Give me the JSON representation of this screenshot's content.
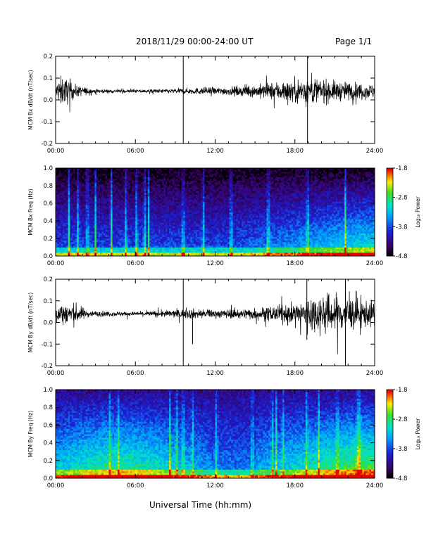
{
  "header": {
    "date_range": "2018/11/29  00:00-24:00 UT",
    "page": "Page 1/1"
  },
  "xlabel": "Universal Time (hh:mm)",
  "chart_data": [
    {
      "type": "line",
      "ylabel": "MCM Bx dB/dt (nT/sec)",
      "xlim": [
        0,
        24
      ],
      "ylim": [
        -0.2,
        0.2
      ],
      "x_ticks": [
        "00:00",
        "06:00",
        "12:00",
        "18:00",
        "24:00"
      ],
      "y_ticks": [
        "-0.2",
        "-0.1",
        "0.0",
        "0.1",
        "0.2"
      ],
      "baseline": 0.04,
      "amplitude_profile": [
        [
          0,
          0.03
        ],
        [
          0.3,
          0.07
        ],
        [
          1,
          0.06
        ],
        [
          1.5,
          0.03
        ],
        [
          3,
          0.01
        ],
        [
          6,
          0.008
        ],
        [
          9,
          0.012
        ],
        [
          10,
          0.015
        ],
        [
          13,
          0.02
        ],
        [
          15,
          0.03
        ],
        [
          17,
          0.05
        ],
        [
          19,
          0.07
        ],
        [
          21,
          0.05
        ],
        [
          23,
          0.04
        ],
        [
          24,
          0.035
        ]
      ],
      "spikes": [
        {
          "x": 9.6,
          "y": [
            -0.2,
            0.2
          ]
        },
        {
          "x": 18.95,
          "y": [
            -0.2,
            0.2
          ]
        }
      ]
    },
    {
      "type": "heatmap",
      "ylabel": "MCM Bx Freq (Hz)",
      "xlim": [
        0,
        24
      ],
      "ylim": [
        0,
        1.0
      ],
      "x_ticks": [
        "00:00",
        "06:00",
        "12:00",
        "18:00",
        "24:00"
      ],
      "y_ticks": [
        "0.0",
        "0.2",
        "0.4",
        "0.6",
        "0.8",
        "1.0"
      ],
      "colorbar": {
        "label": "Log₁₀ Power",
        "ticks": [
          "-1.8",
          "-2.8",
          "-3.8",
          "-4.8"
        ],
        "range": [
          -4.8,
          -1.8
        ]
      },
      "stripes": [
        1.0,
        1.7,
        2.4,
        3.0,
        4.2,
        5.3,
        6.1,
        6.7,
        7.0,
        9.6,
        11.1,
        13.2,
        16.0,
        18.95,
        21.8
      ]
    },
    {
      "type": "line",
      "ylabel": "MCM By dB/dt (nT/sec)",
      "xlim": [
        0,
        24
      ],
      "ylim": [
        -0.2,
        0.2
      ],
      "x_ticks": [
        "00:00",
        "06:00",
        "12:00",
        "18:00",
        "24:00"
      ],
      "y_ticks": [
        "-0.2",
        "-0.1",
        "0.0",
        "0.1",
        "0.2"
      ],
      "baseline": 0.04,
      "amplitude_profile": [
        [
          0,
          0.04
        ],
        [
          0.5,
          0.06
        ],
        [
          1.5,
          0.05
        ],
        [
          2.5,
          0.015
        ],
        [
          6,
          0.01
        ],
        [
          9,
          0.02
        ],
        [
          10,
          0.025
        ],
        [
          12,
          0.02
        ],
        [
          14,
          0.025
        ],
        [
          16,
          0.035
        ],
        [
          18,
          0.05
        ],
        [
          19,
          0.09
        ],
        [
          21,
          0.1
        ],
        [
          23,
          0.07
        ],
        [
          24,
          0.06
        ]
      ],
      "spikes": [
        {
          "x": 9.6,
          "y": [
            -0.2,
            0.2
          ]
        },
        {
          "x": 10.3,
          "y": [
            -0.1,
            0.04
          ]
        },
        {
          "x": 18.9,
          "y": [
            -0.08,
            0.2
          ]
        },
        {
          "x": 21.8,
          "y": [
            -0.2,
            0.2
          ]
        }
      ]
    },
    {
      "type": "heatmap",
      "ylabel": "MCM By Freq (Hz)",
      "xlim": [
        0,
        24
      ],
      "ylim": [
        0,
        1.0
      ],
      "x_ticks": [
        "00:00",
        "06:00",
        "12:00",
        "18:00",
        "24:00"
      ],
      "y_ticks": [
        "0.0",
        "0.2",
        "0.4",
        "0.6",
        "0.8",
        "1.0"
      ],
      "colorbar": {
        "label": "Log₁₀ Power",
        "ticks": [
          "-1.8",
          "-2.8",
          "-3.8",
          "-4.8"
        ],
        "range": [
          -4.8,
          -1.8
        ]
      },
      "stripes": [
        4.1,
        4.7,
        8.6,
        9.1,
        9.6,
        10.3,
        12.1,
        14.8,
        16.3,
        16.6,
        17.1,
        18.9,
        19.8,
        21.2,
        22.7,
        22.9
      ]
    }
  ]
}
